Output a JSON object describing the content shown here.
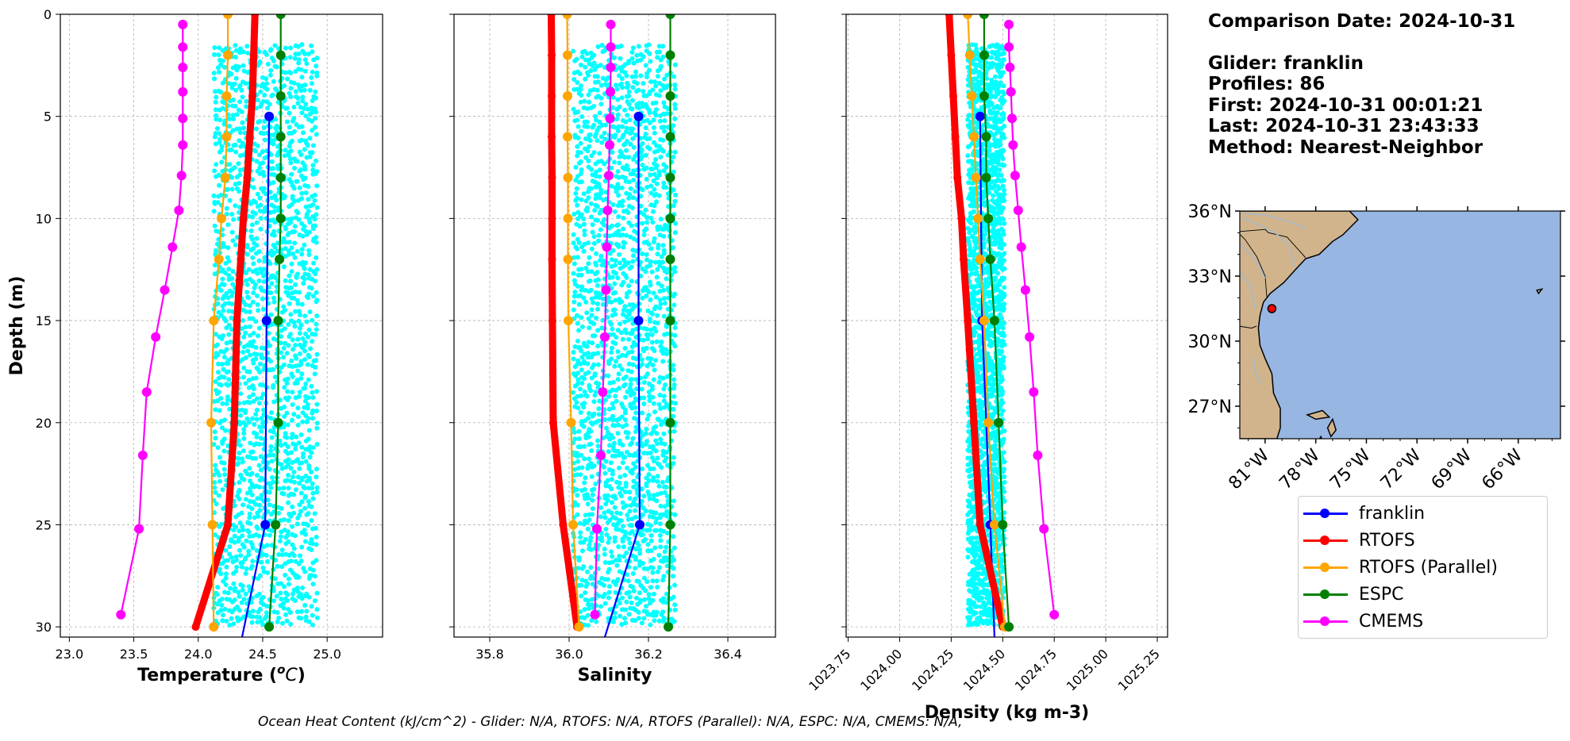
{
  "info": {
    "comparison_date": "Comparison Date: 2024-10-31",
    "glider": "Glider: franklin",
    "profiles": "Profiles: 86",
    "first": "First: 2024-10-31 00:01:21",
    "last": "Last: 2024-10-31 23:43:33",
    "method": "Method: Nearest-Neighbor"
  },
  "footer": "Ocean Heat Content (kJ/cm^2) - Glider: N/A,  RTOFS: N/A,  RTOFS (Parallel): N/A,  ESPC: N/A,  CMEMS: N/A,",
  "colors": {
    "franklin": "#0000ff",
    "rtofs": "#ff0000",
    "rtofs_parallel": "#ffa500",
    "espc": "#008000",
    "cmems": "#ff00ff",
    "glider_scatter": "#00ffff",
    "land": "#d2b48c",
    "ocean": "#97b6e1"
  },
  "legend": [
    {
      "label": "franklin",
      "color": "#0000ff"
    },
    {
      "label": "RTOFS",
      "color": "#ff0000"
    },
    {
      "label": "RTOFS (Parallel)",
      "color": "#ffa500"
    },
    {
      "label": "ESPC",
      "color": "#008000"
    },
    {
      "label": "CMEMS",
      "color": "#ff00ff"
    }
  ],
  "chart_data": [
    {
      "type": "line",
      "xlabel": "Temperature (°C)",
      "ylabel": "Depth (m)",
      "xlim": [
        22.93,
        25.43
      ],
      "ylim": [
        30.5,
        0
      ],
      "xticks": [
        23.0,
        23.5,
        24.0,
        24.5,
        25.0
      ],
      "xtick_labels": [
        "23.0",
        "23.5",
        "24.0",
        "24.5",
        "25.0"
      ],
      "yticks": [
        0,
        5,
        10,
        15,
        20,
        25,
        30
      ],
      "grid": true,
      "glider_scatter": {
        "name": "franklin",
        "x_range": [
          24.12,
          24.93
        ],
        "depth_range": [
          1.6,
          30.0
        ]
      },
      "series": [
        {
          "name": "franklin",
          "depth": [
            5,
            15,
            25,
            30.5
          ],
          "values": [
            24.55,
            24.53,
            24.52,
            24.34
          ]
        },
        {
          "name": "RTOFS",
          "depth": [
            0,
            2,
            4,
            6,
            8,
            10,
            12,
            15,
            20,
            25,
            30
          ],
          "values": [
            24.44,
            24.43,
            24.42,
            24.4,
            24.38,
            24.35,
            24.33,
            24.3,
            24.28,
            24.23,
            23.98
          ]
        },
        {
          "name": "RTOFS (Parallel)",
          "depth": [
            0,
            2,
            4,
            6,
            8,
            10,
            12,
            15,
            20,
            25,
            30
          ],
          "values": [
            24.23,
            24.23,
            24.22,
            24.22,
            24.21,
            24.18,
            24.16,
            24.12,
            24.1,
            24.11,
            24.12
          ]
        },
        {
          "name": "ESPC",
          "depth": [
            0,
            2,
            4,
            6,
            8,
            10,
            12,
            15,
            20,
            25,
            30
          ],
          "values": [
            24.64,
            24.64,
            24.64,
            24.64,
            24.64,
            24.64,
            24.63,
            24.62,
            24.62,
            24.6,
            24.55
          ]
        },
        {
          "name": "CMEMS",
          "depth": [
            0.5,
            1.6,
            2.6,
            3.8,
            5.1,
            6.4,
            7.9,
            9.6,
            11.4,
            13.5,
            15.8,
            18.5,
            21.6,
            25.2,
            29.4
          ],
          "values": [
            23.88,
            23.88,
            23.88,
            23.88,
            23.88,
            23.88,
            23.87,
            23.85,
            23.8,
            23.74,
            23.67,
            23.6,
            23.57,
            23.54,
            23.4
          ]
        }
      ]
    },
    {
      "type": "line",
      "xlabel": "Salinity",
      "xlim": [
        35.71,
        36.52
      ],
      "ylim": [
        30.5,
        0
      ],
      "xticks": [
        35.8,
        36.0,
        36.2,
        36.4
      ],
      "xtick_labels": [
        "35.8",
        "36.0",
        "36.2",
        "36.4"
      ],
      "yticks": [
        0,
        5,
        10,
        15,
        20,
        25,
        30
      ],
      "grid": true,
      "glider_scatter": {
        "name": "franklin",
        "x_range": [
          36.01,
          36.27
        ],
        "depth_range": [
          1.6,
          30.0
        ]
      },
      "series": [
        {
          "name": "franklin",
          "depth": [
            5,
            15,
            25,
            30.5
          ],
          "values": [
            36.175,
            36.175,
            36.178,
            36.09
          ]
        },
        {
          "name": "RTOFS",
          "depth": [
            0,
            2,
            4,
            6,
            8,
            10,
            12,
            15,
            20,
            25,
            30
          ],
          "values": [
            35.955,
            35.956,
            35.956,
            35.956,
            35.957,
            35.957,
            35.957,
            35.958,
            35.96,
            35.985,
            36.02
          ]
        },
        {
          "name": "RTOFS (Parallel)",
          "depth": [
            0,
            2,
            4,
            6,
            8,
            10,
            12,
            15,
            20,
            25,
            30
          ],
          "values": [
            35.995,
            35.996,
            35.996,
            35.996,
            35.997,
            35.997,
            35.997,
            35.998,
            36.005,
            36.01,
            36.025
          ]
        },
        {
          "name": "ESPC",
          "depth": [
            0,
            2,
            4,
            6,
            8,
            10,
            12,
            15,
            20,
            25,
            30
          ],
          "values": [
            36.255,
            36.255,
            36.255,
            36.255,
            36.255,
            36.255,
            36.255,
            36.255,
            36.255,
            36.255,
            36.25
          ]
        },
        {
          "name": "CMEMS",
          "depth": [
            0.5,
            1.6,
            2.6,
            3.8,
            5.1,
            6.4,
            7.9,
            9.6,
            11.4,
            13.5,
            15.8,
            18.5,
            21.6,
            25.2,
            29.4
          ],
          "values": [
            36.105,
            36.105,
            36.105,
            36.104,
            36.103,
            36.102,
            36.1,
            36.097,
            36.095,
            36.093,
            36.09,
            36.085,
            36.08,
            36.07,
            36.065
          ]
        }
      ]
    },
    {
      "type": "line",
      "xlabel": "Density (kg m-3)",
      "xlim": [
        1023.74,
        1025.3
      ],
      "ylim": [
        30.5,
        0
      ],
      "xticks": [
        1023.75,
        1024.0,
        1024.25,
        1024.5,
        1024.75,
        1025.0,
        1025.25
      ],
      "xtick_labels": [
        "1023.75",
        "1024.00",
        "1024.25",
        "1024.50",
        "1024.75",
        "1025.00",
        "1025.25"
      ],
      "yticks": [
        0,
        5,
        10,
        15,
        20,
        25,
        30
      ],
      "grid": true,
      "glider_scatter": {
        "name": "franklin",
        "x_range": [
          1024.33,
          1024.51
        ],
        "depth_range": [
          1.6,
          30.0
        ]
      },
      "series": [
        {
          "name": "franklin",
          "depth": [
            5,
            15,
            25,
            30.5
          ],
          "values": [
            1024.39,
            1024.4,
            1024.44,
            1024.46
          ]
        },
        {
          "name": "RTOFS",
          "depth": [
            0,
            2,
            4,
            6,
            8,
            10,
            12,
            15,
            20,
            25,
            30
          ],
          "values": [
            1024.24,
            1024.25,
            1024.26,
            1024.27,
            1024.28,
            1024.3,
            1024.31,
            1024.33,
            1024.36,
            1024.39,
            1024.5
          ]
        },
        {
          "name": "RTOFS (Parallel)",
          "depth": [
            0,
            2,
            4,
            6,
            8,
            10,
            12,
            15,
            20,
            25,
            30
          ],
          "values": [
            1024.33,
            1024.34,
            1024.35,
            1024.36,
            1024.37,
            1024.38,
            1024.39,
            1024.41,
            1024.43,
            1024.46,
            1024.51
          ]
        },
        {
          "name": "ESPC",
          "depth": [
            0,
            2,
            4,
            6,
            8,
            10,
            12,
            15,
            20,
            25,
            30
          ],
          "values": [
            1024.41,
            1024.41,
            1024.41,
            1024.42,
            1024.42,
            1024.43,
            1024.44,
            1024.46,
            1024.48,
            1024.5,
            1024.53
          ]
        },
        {
          "name": "CMEMS",
          "depth": [
            0.5,
            1.6,
            2.6,
            3.8,
            5.1,
            6.4,
            7.9,
            9.6,
            11.4,
            13.5,
            15.8,
            18.5,
            21.6,
            25.2,
            29.4
          ],
          "values": [
            1024.53,
            1024.53,
            1024.535,
            1024.54,
            1024.545,
            1024.55,
            1024.56,
            1024.575,
            1024.59,
            1024.61,
            1024.63,
            1024.65,
            1024.67,
            1024.7,
            1024.75
          ]
        }
      ]
    }
  ],
  "map": {
    "lon_range": [
      -82.5,
      -63.5
    ],
    "lat_range": [
      25.5,
      36.0
    ],
    "lat_ticks": [
      36,
      33,
      30,
      27
    ],
    "lat_labels": [
      "36°N",
      "33°N",
      "30°N",
      "27°N"
    ],
    "lon_ticks": [
      -81,
      -78,
      -75,
      -72,
      -69,
      -66
    ],
    "lon_labels": [
      "81°W",
      "78°W",
      "75°W",
      "72°W",
      "69°W",
      "66°W"
    ],
    "glider_position": {
      "lon": -80.6,
      "lat": 31.5
    }
  }
}
